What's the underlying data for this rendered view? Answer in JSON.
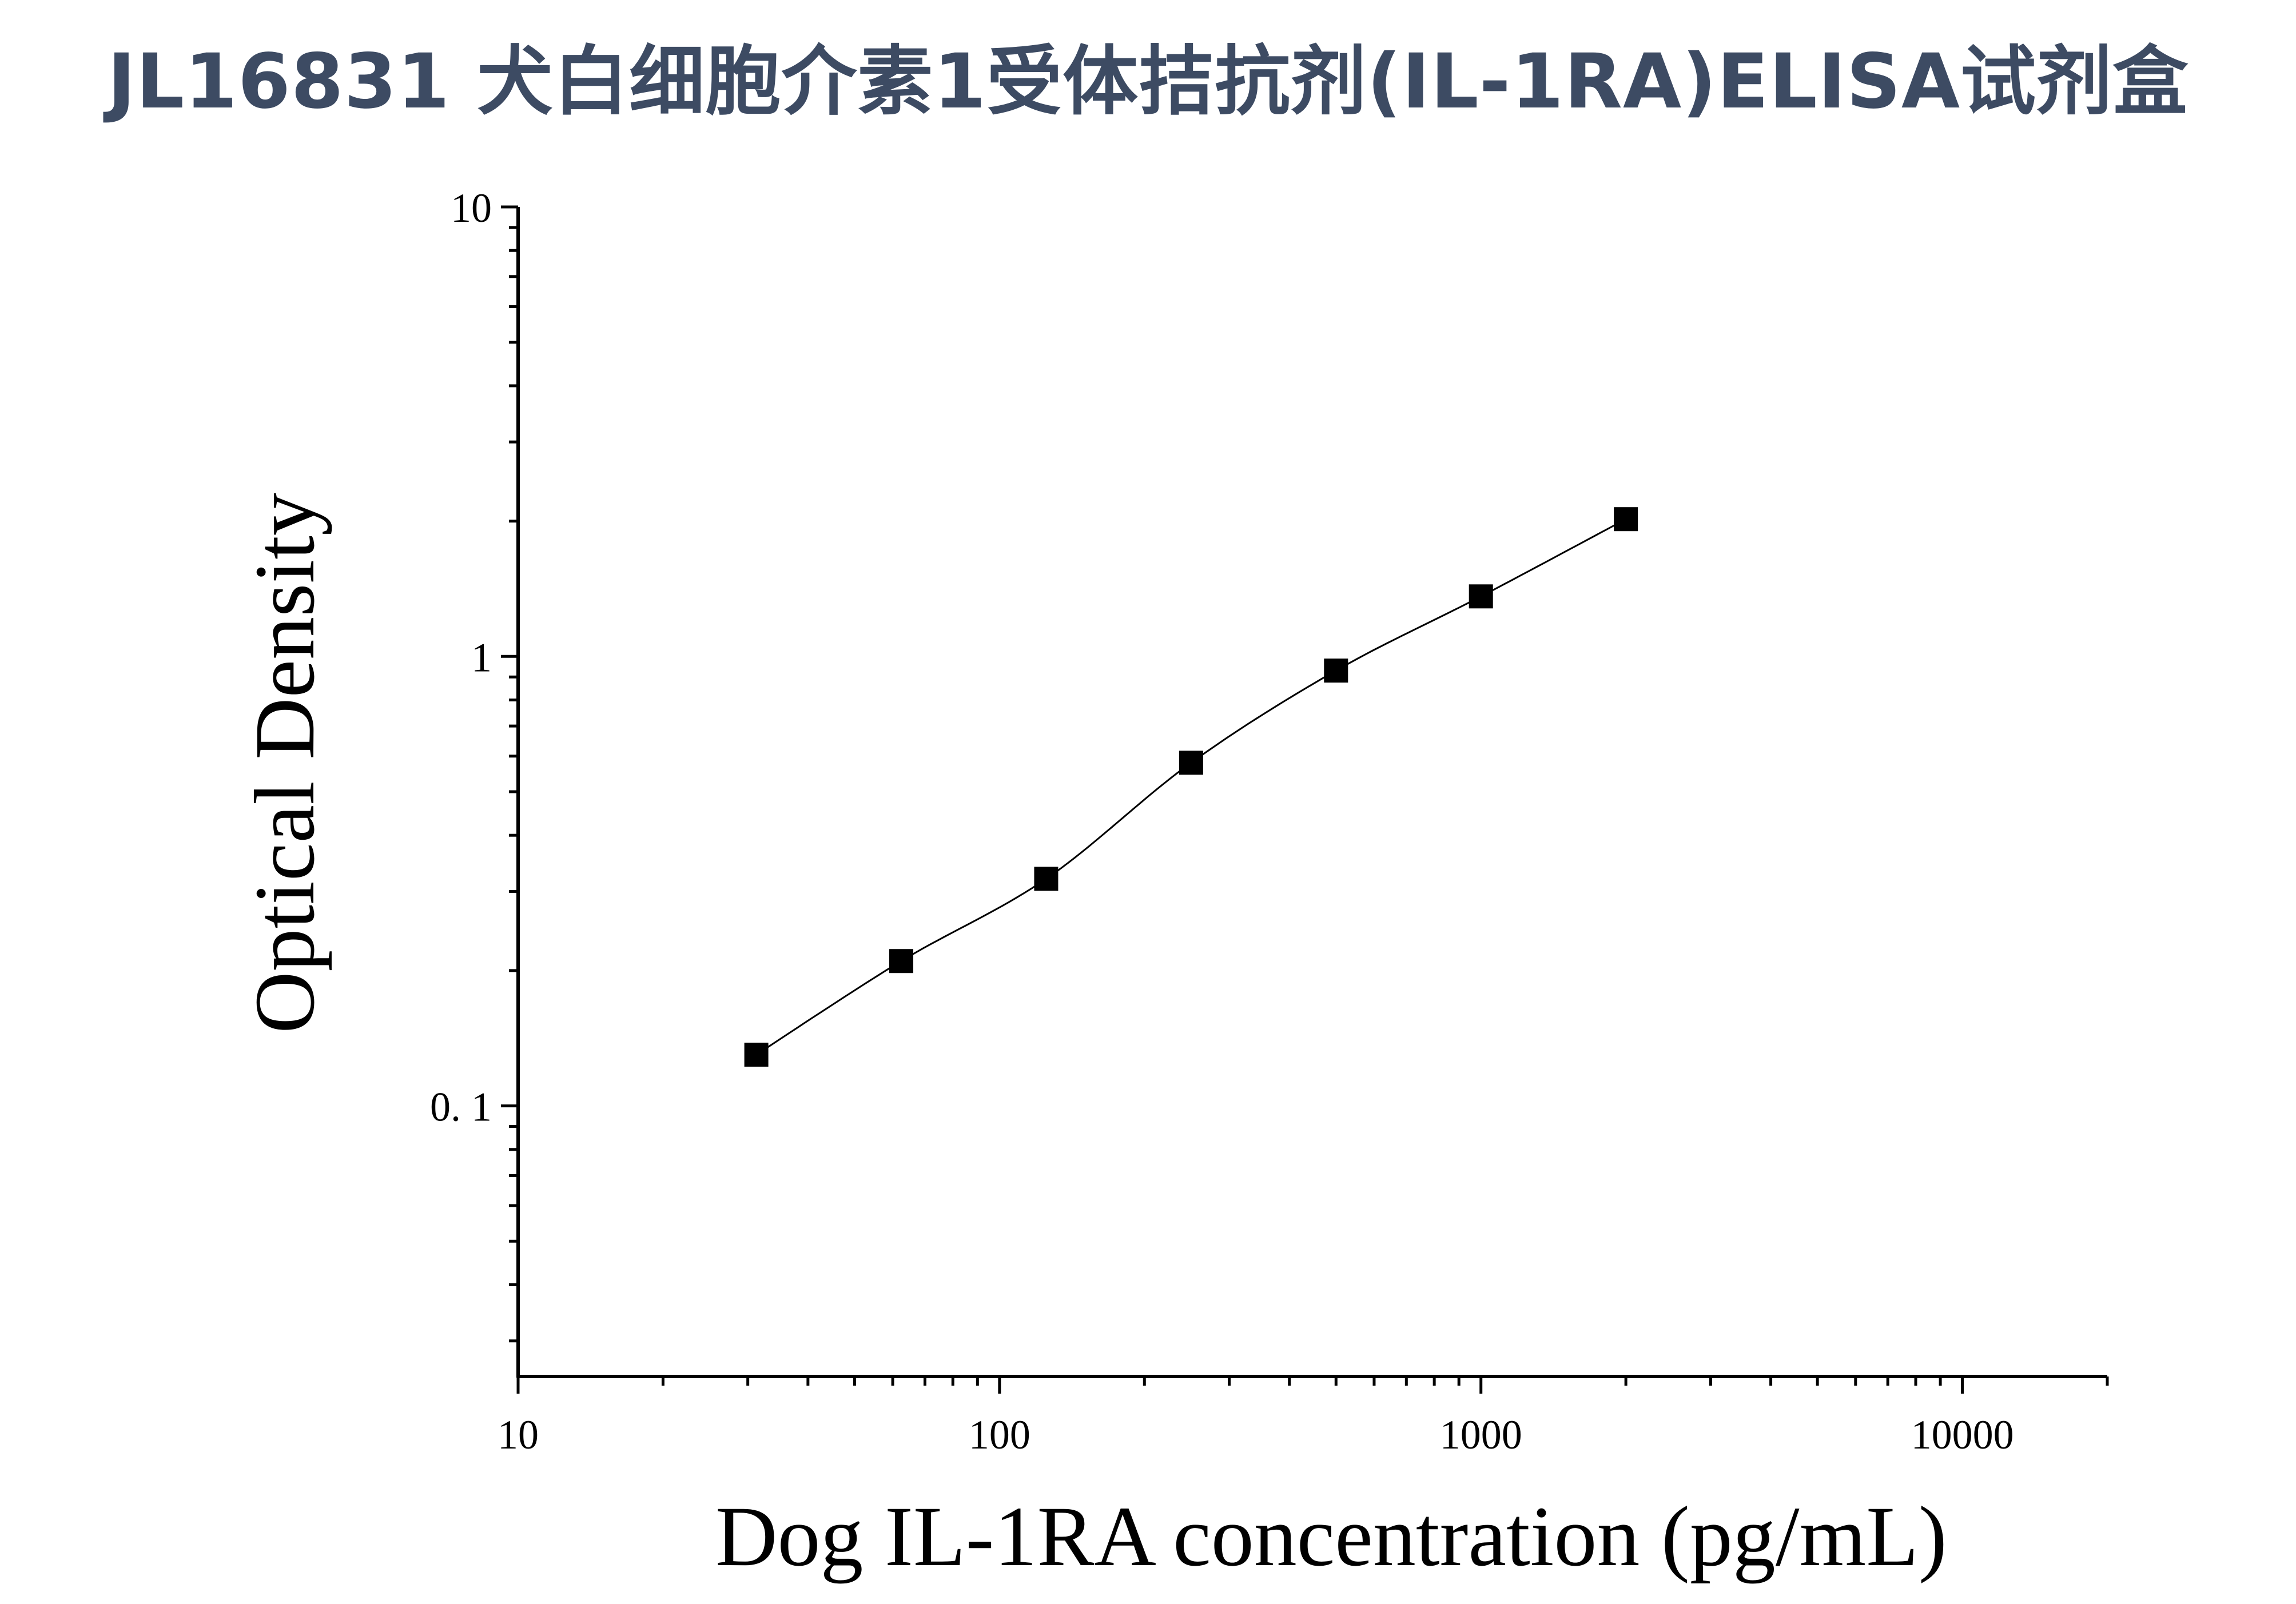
{
  "title": "JL16831 犬白细胞介素1受体拮抗剂(IL-1RA)ELISA试剂盒",
  "chart_data": {
    "type": "scatter",
    "title": "JL16831 犬白细胞介素1受体拮抗剂(IL-1RA)ELISA试剂盒",
    "xlabel": "Dog IL-1RA concentration (pg/mL)",
    "ylabel": "Optical Density",
    "x_scale": "log",
    "y_scale": "log",
    "xlim": [
      10,
      20000
    ],
    "ylim": [
      0.025,
      10
    ],
    "x_ticks": [
      10,
      100,
      1000,
      10000
    ],
    "x_tick_labels": [
      "10",
      "100",
      "1000",
      "10000"
    ],
    "y_ticks": [
      0.1,
      1,
      10
    ],
    "y_tick_labels": [
      "0. 1",
      "1",
      "10"
    ],
    "grid": false,
    "legend": "none",
    "series": [
      {
        "x": [
          31.25,
          62.5,
          125,
          250,
          500,
          1000,
          2000
        ],
        "y": [
          0.13,
          0.21,
          0.32,
          0.58,
          0.93,
          1.36,
          2.02
        ],
        "marker": "square",
        "fit_line": true
      }
    ],
    "colors": {
      "marker": "#000000",
      "line": "#000000",
      "title": "#3d4b63"
    }
  }
}
